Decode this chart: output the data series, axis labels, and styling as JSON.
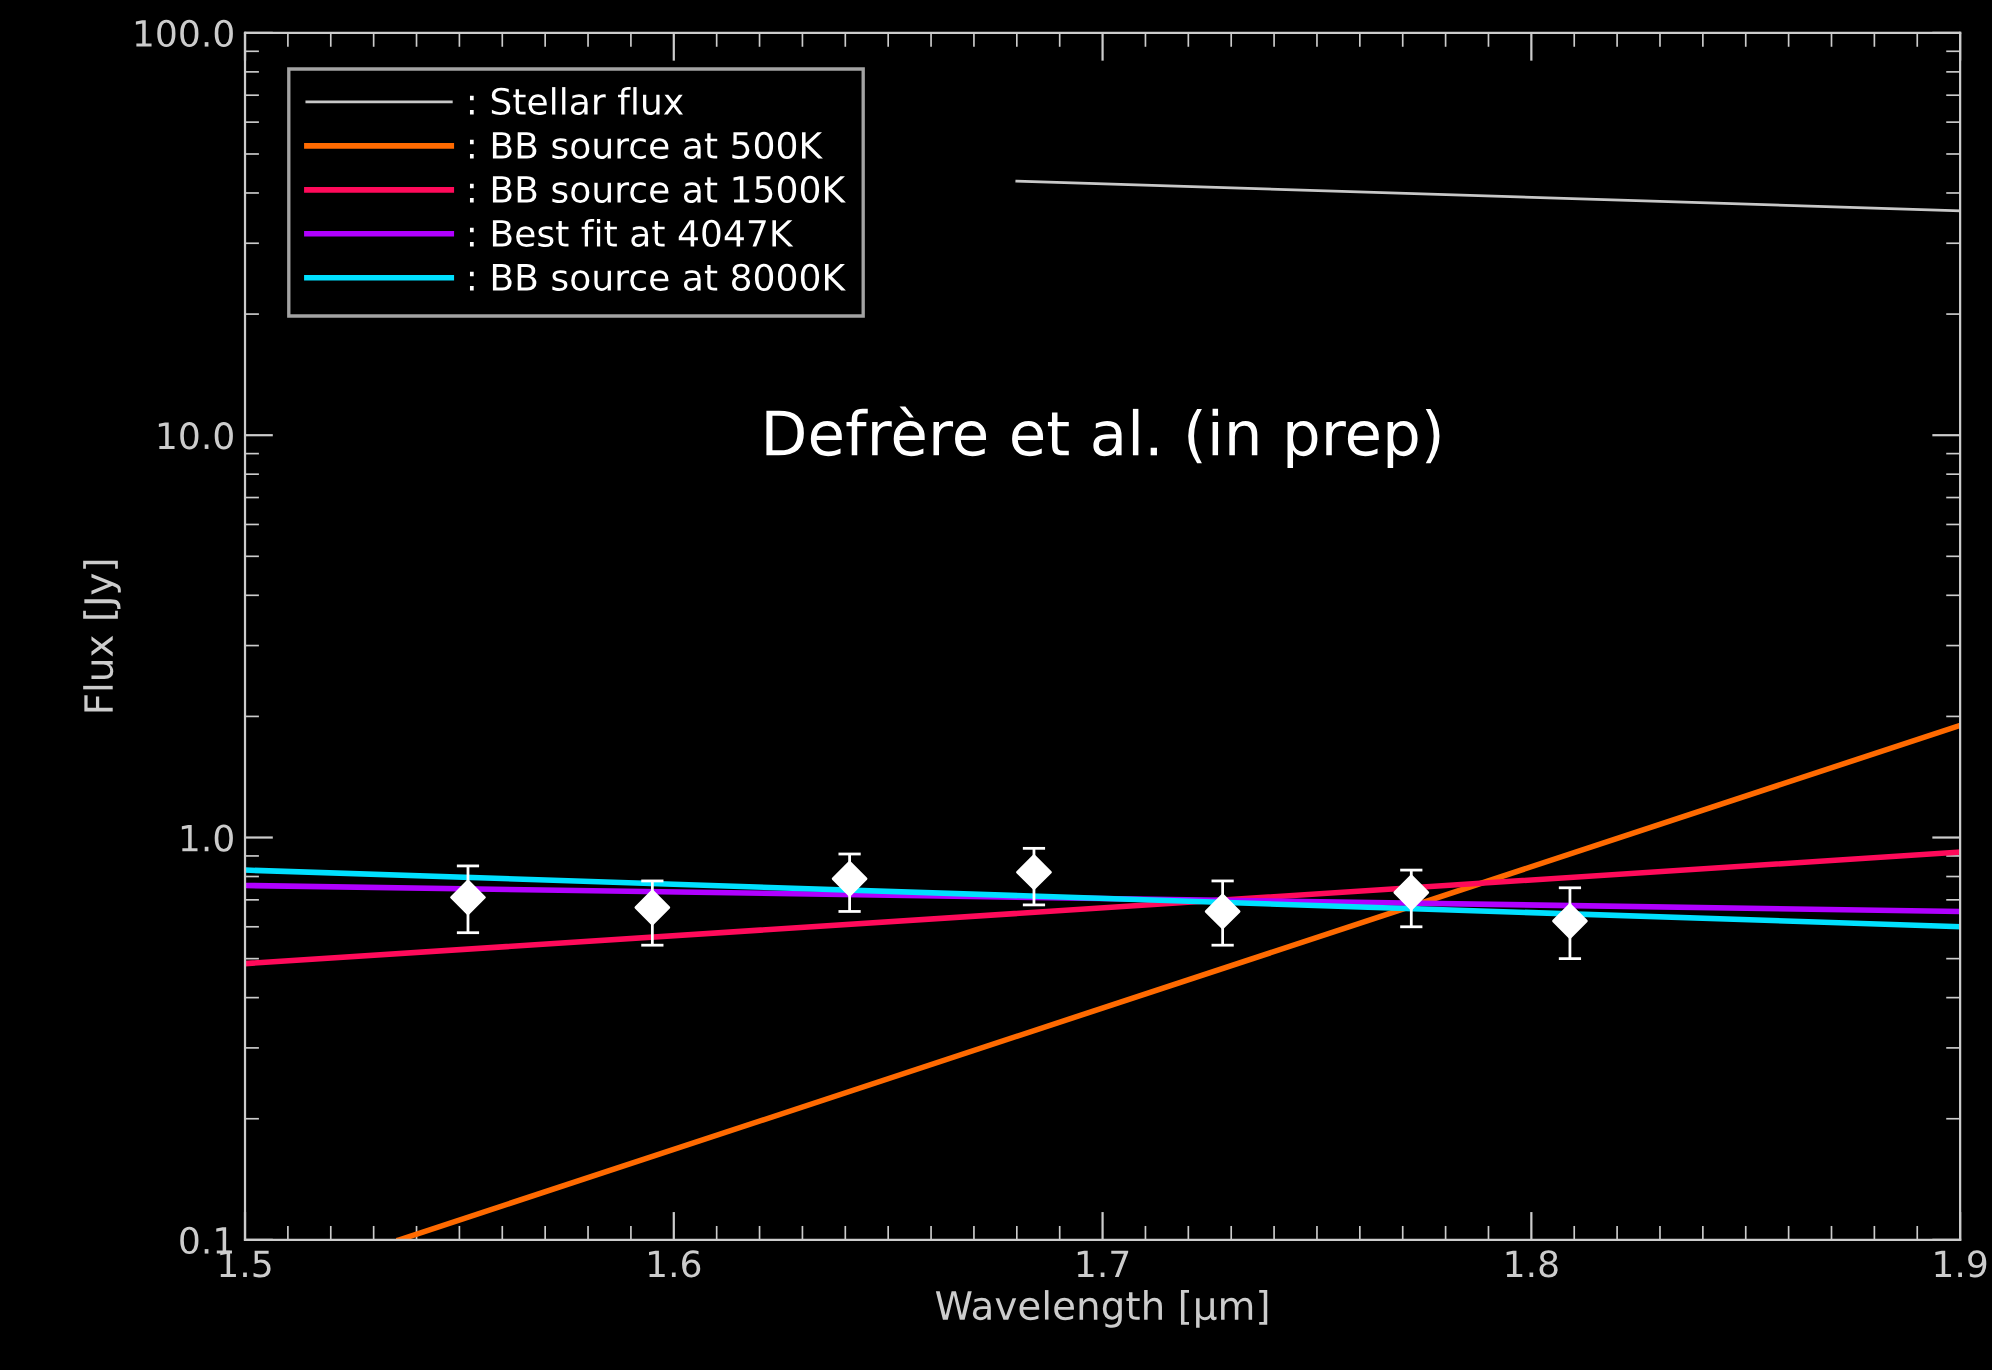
{
  "chart_data": {
    "type": "line",
    "xlabel": "Wavelength [μm]",
    "ylabel": "Flux [Jy]",
    "log": "y",
    "xlim": [
      1.5,
      1.9
    ],
    "xticks": [
      1.5,
      1.6,
      1.7,
      1.8,
      1.9
    ],
    "ylim": [
      0.1,
      100
    ],
    "yticks": [
      {
        "value": 0.1,
        "label": "0.1"
      },
      {
        "value": 1,
        "label": "1.0"
      },
      {
        "value": 10,
        "label": "10.0"
      },
      {
        "value": 100,
        "label": "100.0"
      }
    ],
    "legend": "top left",
    "grid": false,
    "annotations": [
      "Defrère et al. (in prep)"
    ],
    "series": [
      {
        "name": ": Stellar flux",
        "color": "#c8c8c8",
        "x": [
          1.68,
          1.9
        ],
        "values": [
          42.8,
          36.1
        ]
      },
      {
        "name": ": BB source at 500K",
        "color": "#ff6a00",
        "x": [
          1.536,
          1.9
        ],
        "values": [
          0.1,
          1.9
        ]
      },
      {
        "name": ": BB source at 1500K",
        "color": "#ff0a5a",
        "x": [
          1.5,
          1.9
        ],
        "values": [
          0.486,
          0.92
        ]
      },
      {
        "name": ": Best fit at 4047K",
        "color": "#b000ff",
        "x": [
          1.5,
          1.9
        ],
        "values": [
          0.76,
          0.655
        ]
      },
      {
        "name": ": BB source at 8000K",
        "color": "#00e0ff",
        "x": [
          1.5,
          1.9
        ],
        "values": [
          0.83,
          0.6
        ]
      },
      {
        "type": "scatter",
        "marker": "diamond",
        "color": "#ffffff",
        "x": [
          1.552,
          1.595,
          1.641,
          1.684,
          1.728,
          1.772,
          1.809
        ],
        "values": [
          0.71,
          0.67,
          0.79,
          0.82,
          0.655,
          0.73,
          0.62
        ],
        "errors": [
          [
            0.58,
            0.85
          ],
          [
            0.54,
            0.78
          ],
          [
            0.655,
            0.91
          ],
          [
            0.68,
            0.94
          ],
          [
            0.54,
            0.78
          ],
          [
            0.6,
            0.83
          ],
          [
            0.5,
            0.75
          ]
        ]
      }
    ]
  }
}
